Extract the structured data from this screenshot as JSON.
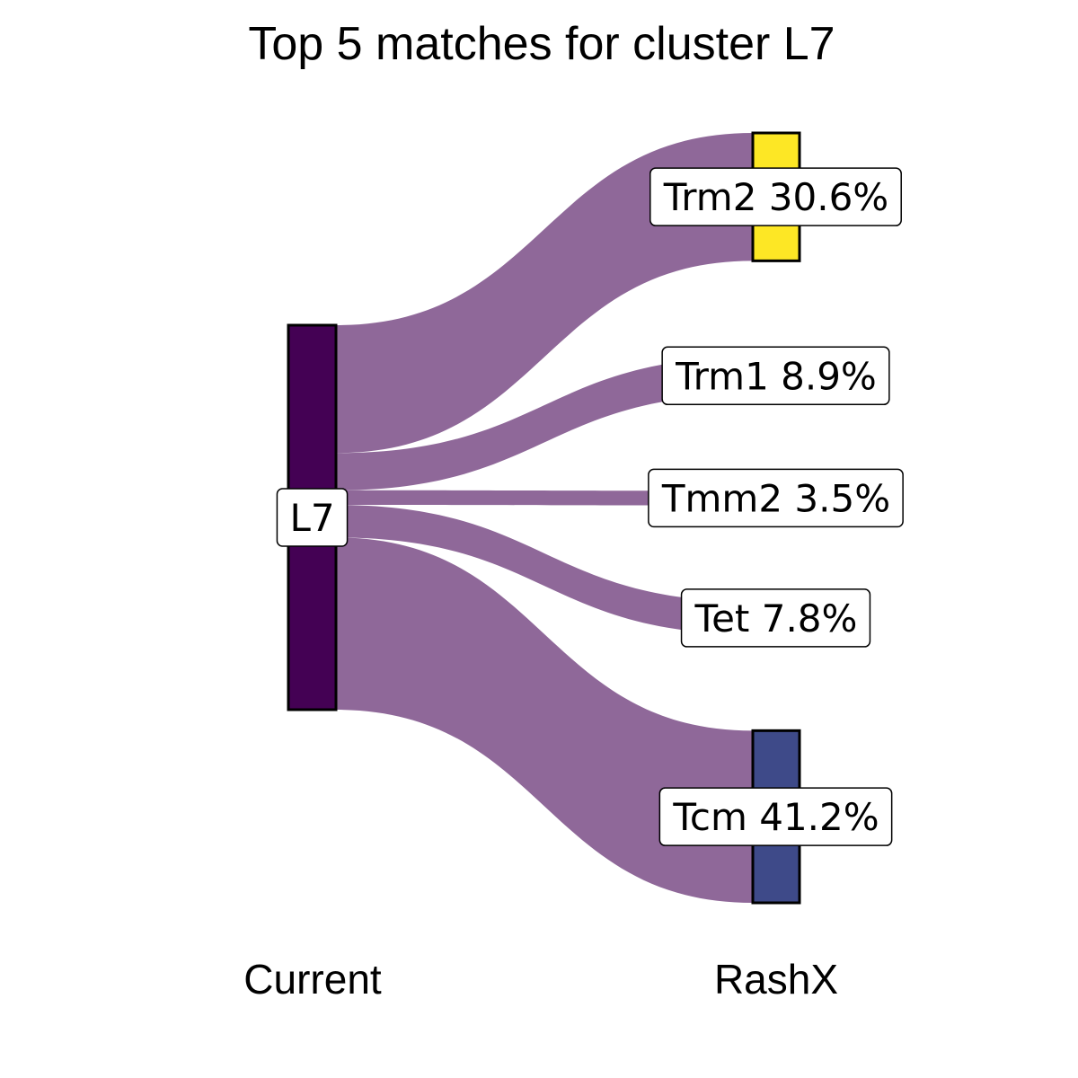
{
  "chart_data": {
    "type": "sankey",
    "title": "Top 5 matches for cluster L7",
    "axis_labels": [
      "Current",
      "RashX"
    ],
    "source": {
      "name": "L7",
      "color": "#440154"
    },
    "flow_color": "#8f6899",
    "targets": [
      {
        "name": "Trm2",
        "percent": 30.6,
        "label": "Trm2 30.6%",
        "color": "#fde725",
        "show_bar": true
      },
      {
        "name": "Trm1",
        "percent": 8.9,
        "label": "Trm1 8.9%",
        "color": "#35b779",
        "show_bar": false
      },
      {
        "name": "Tmm2",
        "percent": 3.5,
        "label": "Tmm2 3.5%",
        "color": "#21918c",
        "show_bar": false
      },
      {
        "name": "Tet",
        "percent": 7.8,
        "label": "Tet 7.8%",
        "color": "#31688e",
        "show_bar": false
      },
      {
        "name": "Tcm",
        "percent": 41.2,
        "label": "Tcm 41.2%",
        "color": "#3e4a89",
        "show_bar": true
      }
    ]
  }
}
